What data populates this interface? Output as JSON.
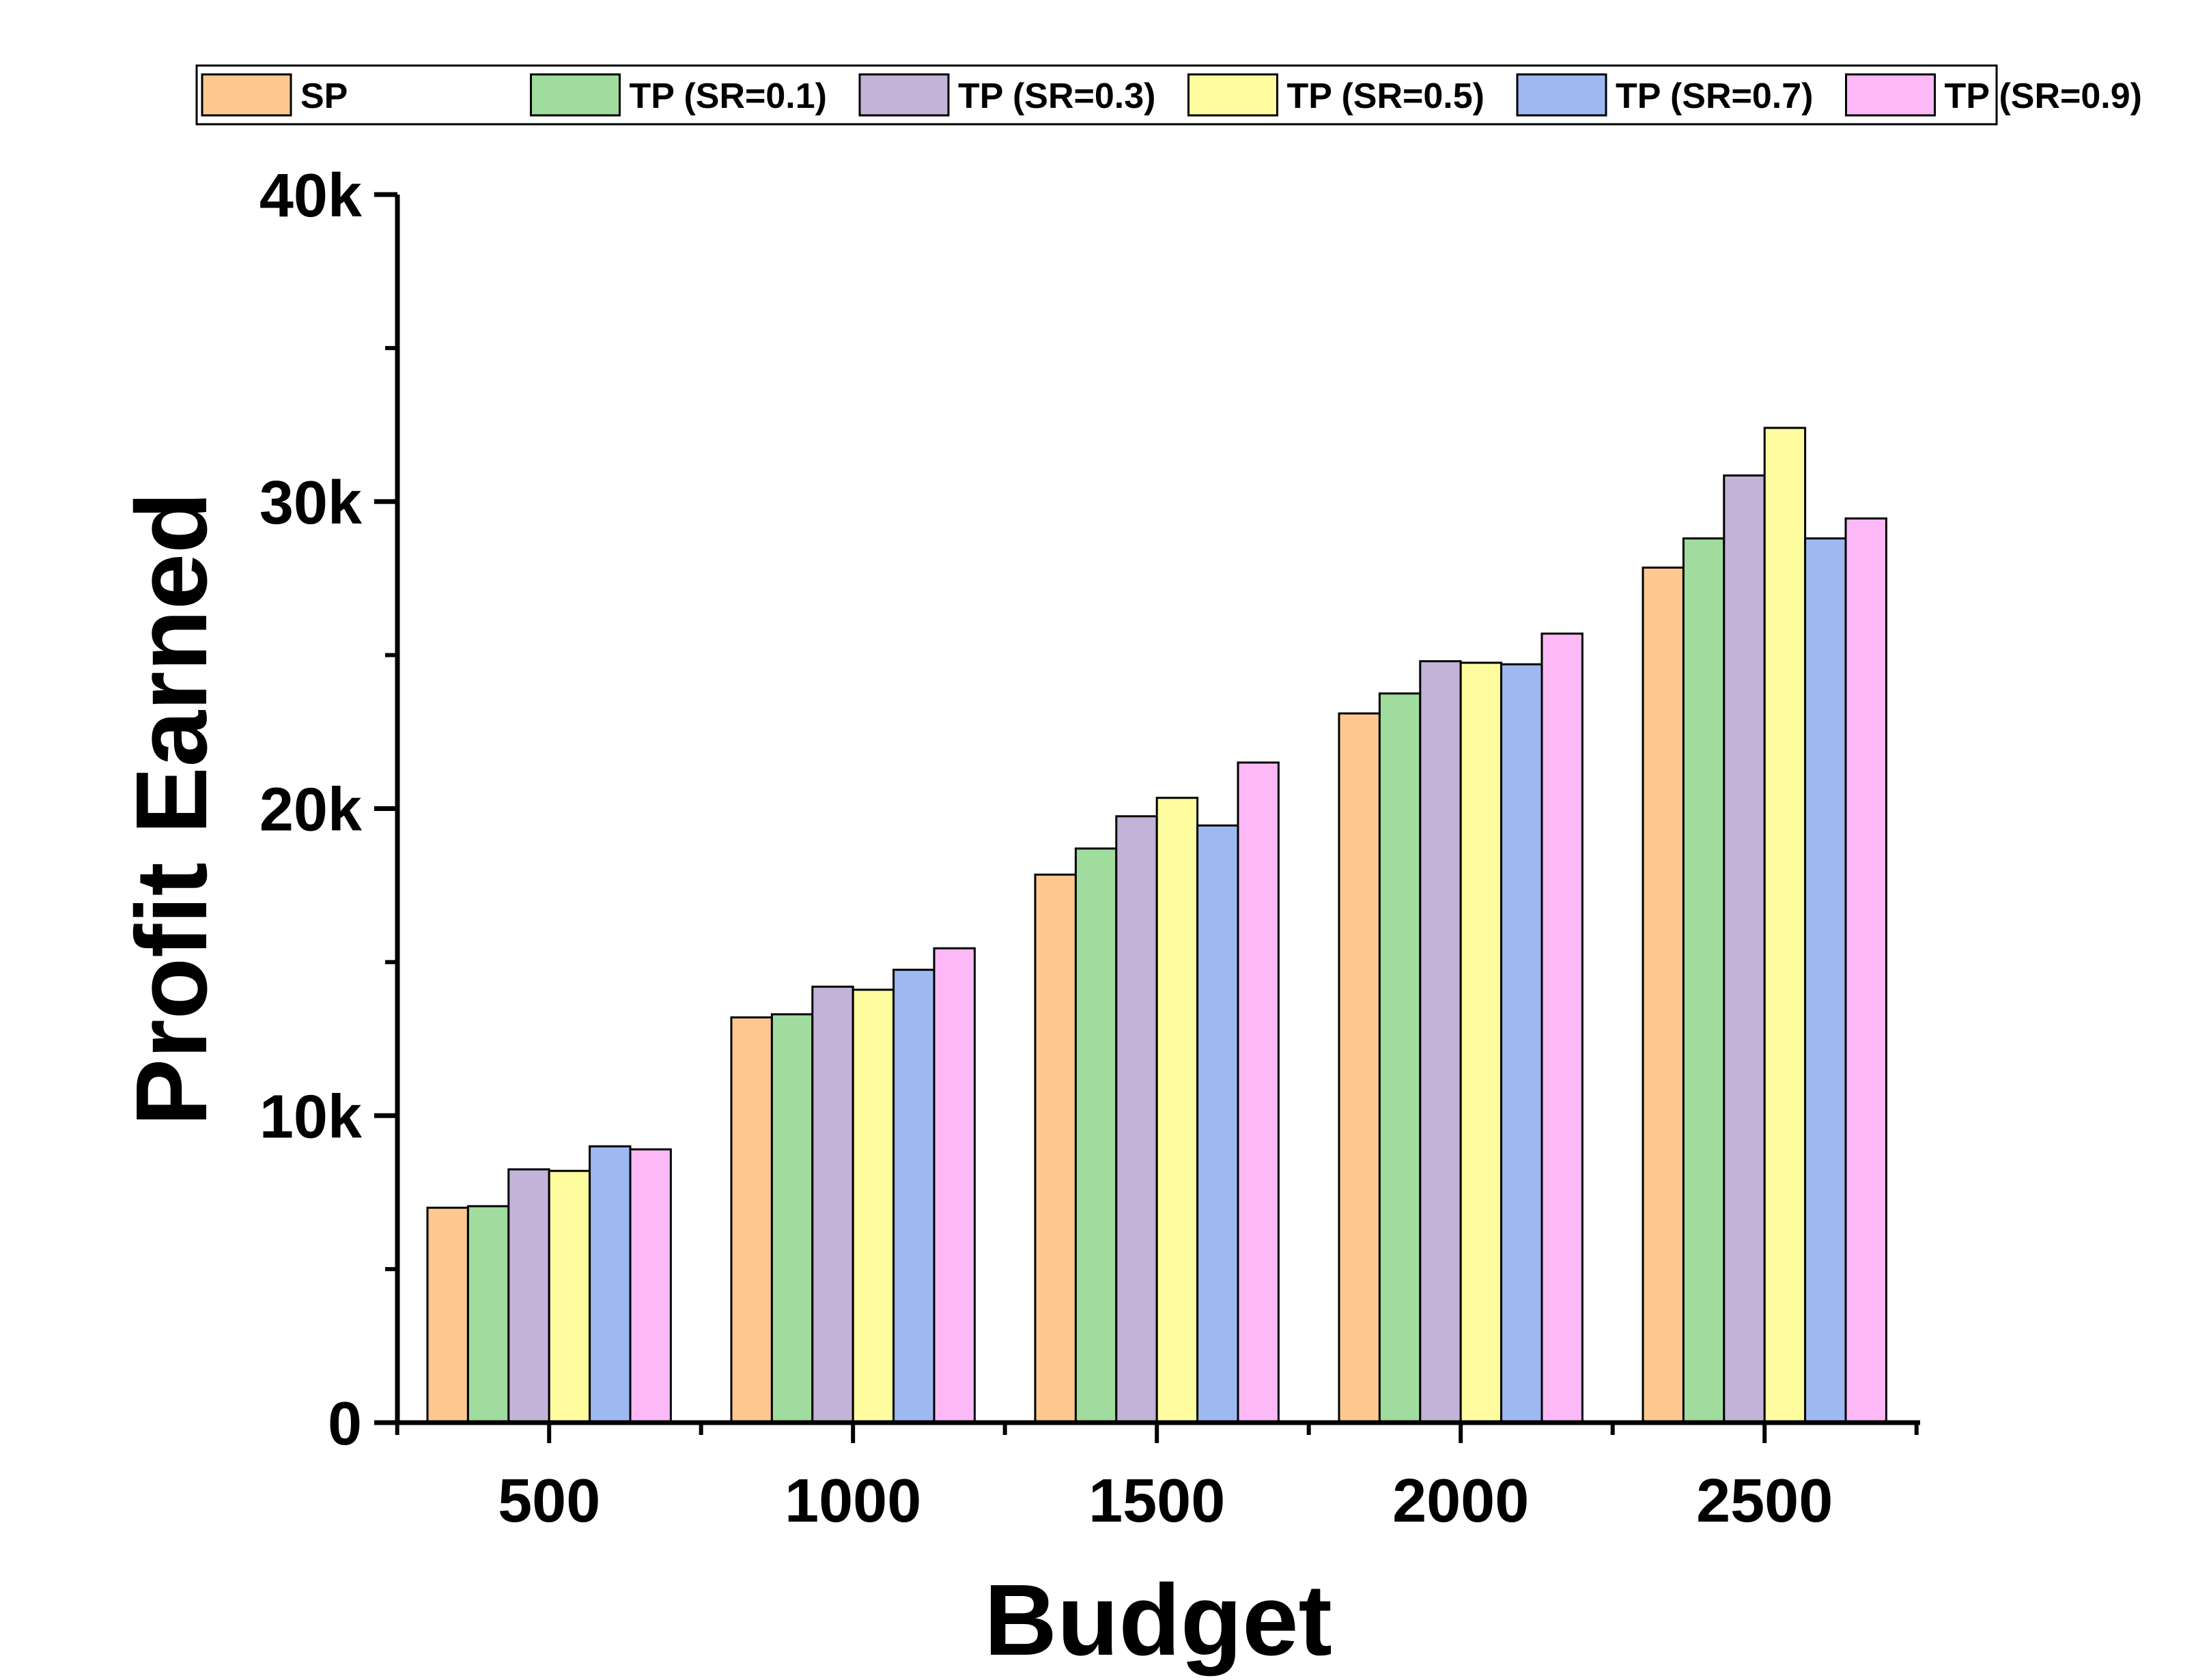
{
  "chart_data": {
    "type": "bar",
    "xlabel": "Budget",
    "ylabel": "Profit Earned",
    "categories": [
      "500",
      "1000",
      "1500",
      "2000",
      "2500"
    ],
    "ylim": [
      0,
      40000
    ],
    "yticks": [
      0,
      10000,
      20000,
      30000,
      40000
    ],
    "ytick_labels": [
      "0",
      "10k",
      "20k",
      "30k",
      "40k"
    ],
    "grid": false,
    "legend_position": "top",
    "series": [
      {
        "name": "SP",
        "color": "#FDC991",
        "values": [
          7000,
          13200,
          17850,
          23100,
          27850
        ]
      },
      {
        "name": "TP (SR=0.1)",
        "color": "#A0DC9E",
        "values": [
          7050,
          13300,
          18700,
          23750,
          28800
        ]
      },
      {
        "name": "TP (SR=0.3)",
        "color": "#C4B3D9",
        "values": [
          8250,
          14200,
          19750,
          24800,
          30850
        ]
      },
      {
        "name": "TP (SR=0.5)",
        "color": "#FDFDA0",
        "values": [
          8200,
          14100,
          20350,
          24750,
          32400
        ]
      },
      {
        "name": "TP (SR=0.7)",
        "color": "#9EB9F2",
        "values": [
          9000,
          14750,
          19450,
          24700,
          28800
        ]
      },
      {
        "name": "TP (SR=0.9)",
        "color": "#FDB8F6",
        "values": [
          8900,
          15450,
          21500,
          25700,
          29450
        ]
      }
    ]
  }
}
